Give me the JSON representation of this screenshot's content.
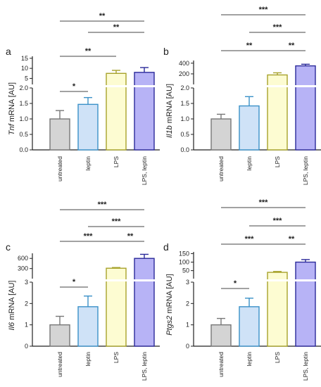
{
  "colors": {
    "untreated_fill": "#d4d4d4",
    "untreated_stroke": "#777777",
    "leptin_fill": "#cfe2f7",
    "leptin_stroke": "#3a91c8",
    "lps_fill": "#fdfcd2",
    "lps_stroke": "#a7a22a",
    "lps_leptin_fill": "#b7b3f6",
    "lps_leptin_stroke": "#2b2a9a",
    "axis": "#222222",
    "bracket": "#444444"
  },
  "chart_data": [
    {
      "type": "bar",
      "panel": "a",
      "ylabel_italic": "Tnf",
      "ylabel_rest": " mRNA [AU]",
      "categories": [
        "untreated",
        "leptin",
        "LPS",
        "LPS, leptin"
      ],
      "values": [
        1.0,
        1.47,
        7.5,
        8.0
      ],
      "errors": [
        0.27,
        0.22,
        1.5,
        2.4
      ],
      "lower_axis": {
        "ylim": [
          0,
          2.0
        ],
        "ticks": [
          "0.0",
          "0.5",
          "1.0",
          "1.5",
          "2.0"
        ]
      },
      "upper_axis": {
        "ylim": [
          2.0,
          16
        ],
        "ticks": [
          "5",
          "10",
          "15"
        ]
      },
      "brackets": [
        {
          "from": "untreated",
          "to": "leptin",
          "label": "*"
        },
        {
          "from": "untreated",
          "to": "LPS",
          "label": "**"
        },
        {
          "from": "leptin",
          "to": "LPS, leptin",
          "label": "**"
        },
        {
          "from": "untreated",
          "to": "LPS, leptin",
          "label": "**"
        }
      ]
    },
    {
      "type": "bar",
      "panel": "b",
      "ylabel_italic": "Il1b",
      "ylabel_rest": " mRNA [AU]",
      "categories": [
        "untreated",
        "leptin",
        "LPS",
        "LPS, leptin"
      ],
      "values": [
        1.0,
        1.42,
        180,
        350
      ],
      "errors": [
        0.15,
        0.3,
        40,
        30
      ],
      "lower_axis": {
        "ylim": [
          0,
          2.0
        ],
        "ticks": [
          "0.0",
          "0.5",
          "1.0",
          "1.5",
          "2.0"
        ]
      },
      "upper_axis": {
        "ylim": [
          2,
          450
        ],
        "ticks": [
          "200",
          "400"
        ]
      },
      "brackets": [
        {
          "from": "untreated",
          "to": "LPS",
          "label": "**"
        },
        {
          "from": "LPS",
          "to": "LPS, leptin",
          "label": "**"
        },
        {
          "from": "leptin",
          "to": "LPS, leptin",
          "label": "***"
        },
        {
          "from": "untreated",
          "to": "LPS, leptin",
          "label": "***"
        }
      ]
    },
    {
      "type": "bar",
      "panel": "c",
      "ylabel_italic": "Il6",
      "ylabel_rest": " mRNA [AU]",
      "categories": [
        "untreated",
        "leptin",
        "LPS",
        "LPS, leptin"
      ],
      "values": [
        1.0,
        1.85,
        310,
        600
      ],
      "errors": [
        0.4,
        0.5,
        20,
        120
      ],
      "lower_axis": {
        "ylim": [
          0,
          3
        ],
        "ticks": [
          "0",
          "1",
          "2",
          "3"
        ]
      },
      "upper_axis": {
        "ylim": [
          3,
          750
        ],
        "ticks": [
          "300",
          "600"
        ]
      },
      "brackets": [
        {
          "from": "untreated",
          "to": "leptin",
          "label": "*"
        },
        {
          "from": "untreated",
          "to": "LPS",
          "label": "***"
        },
        {
          "from": "LPS",
          "to": "LPS, leptin",
          "label": "**"
        },
        {
          "from": "leptin",
          "to": "LPS, leptin",
          "label": "***"
        },
        {
          "from": "untreated",
          "to": "LPS, leptin",
          "label": "***"
        }
      ]
    },
    {
      "type": "bar",
      "panel": "d",
      "ylabel_italic": "Ptgs2",
      "ylabel_rest": " mRNA [AU]",
      "categories": [
        "untreated",
        "leptin",
        "LPS",
        "LPS, leptin"
      ],
      "values": [
        1.0,
        1.85,
        40,
        100
      ],
      "errors": [
        0.3,
        0.4,
        5,
        15
      ],
      "lower_axis": {
        "ylim": [
          0,
          3
        ],
        "ticks": [
          "0",
          "1",
          "2",
          "3"
        ]
      },
      "upper_axis": {
        "ylim": [
          3,
          160
        ],
        "ticks": [
          "50",
          "100",
          "150"
        ]
      },
      "brackets": [
        {
          "from": "untreated",
          "to": "leptin",
          "label": "*"
        },
        {
          "from": "untreated",
          "to": "LPS",
          "label": "***"
        },
        {
          "from": "LPS",
          "to": "LPS, leptin",
          "label": "**"
        },
        {
          "from": "leptin",
          "to": "LPS, leptin",
          "label": "***"
        },
        {
          "from": "untreated",
          "to": "LPS, leptin",
          "label": "***"
        }
      ]
    }
  ]
}
